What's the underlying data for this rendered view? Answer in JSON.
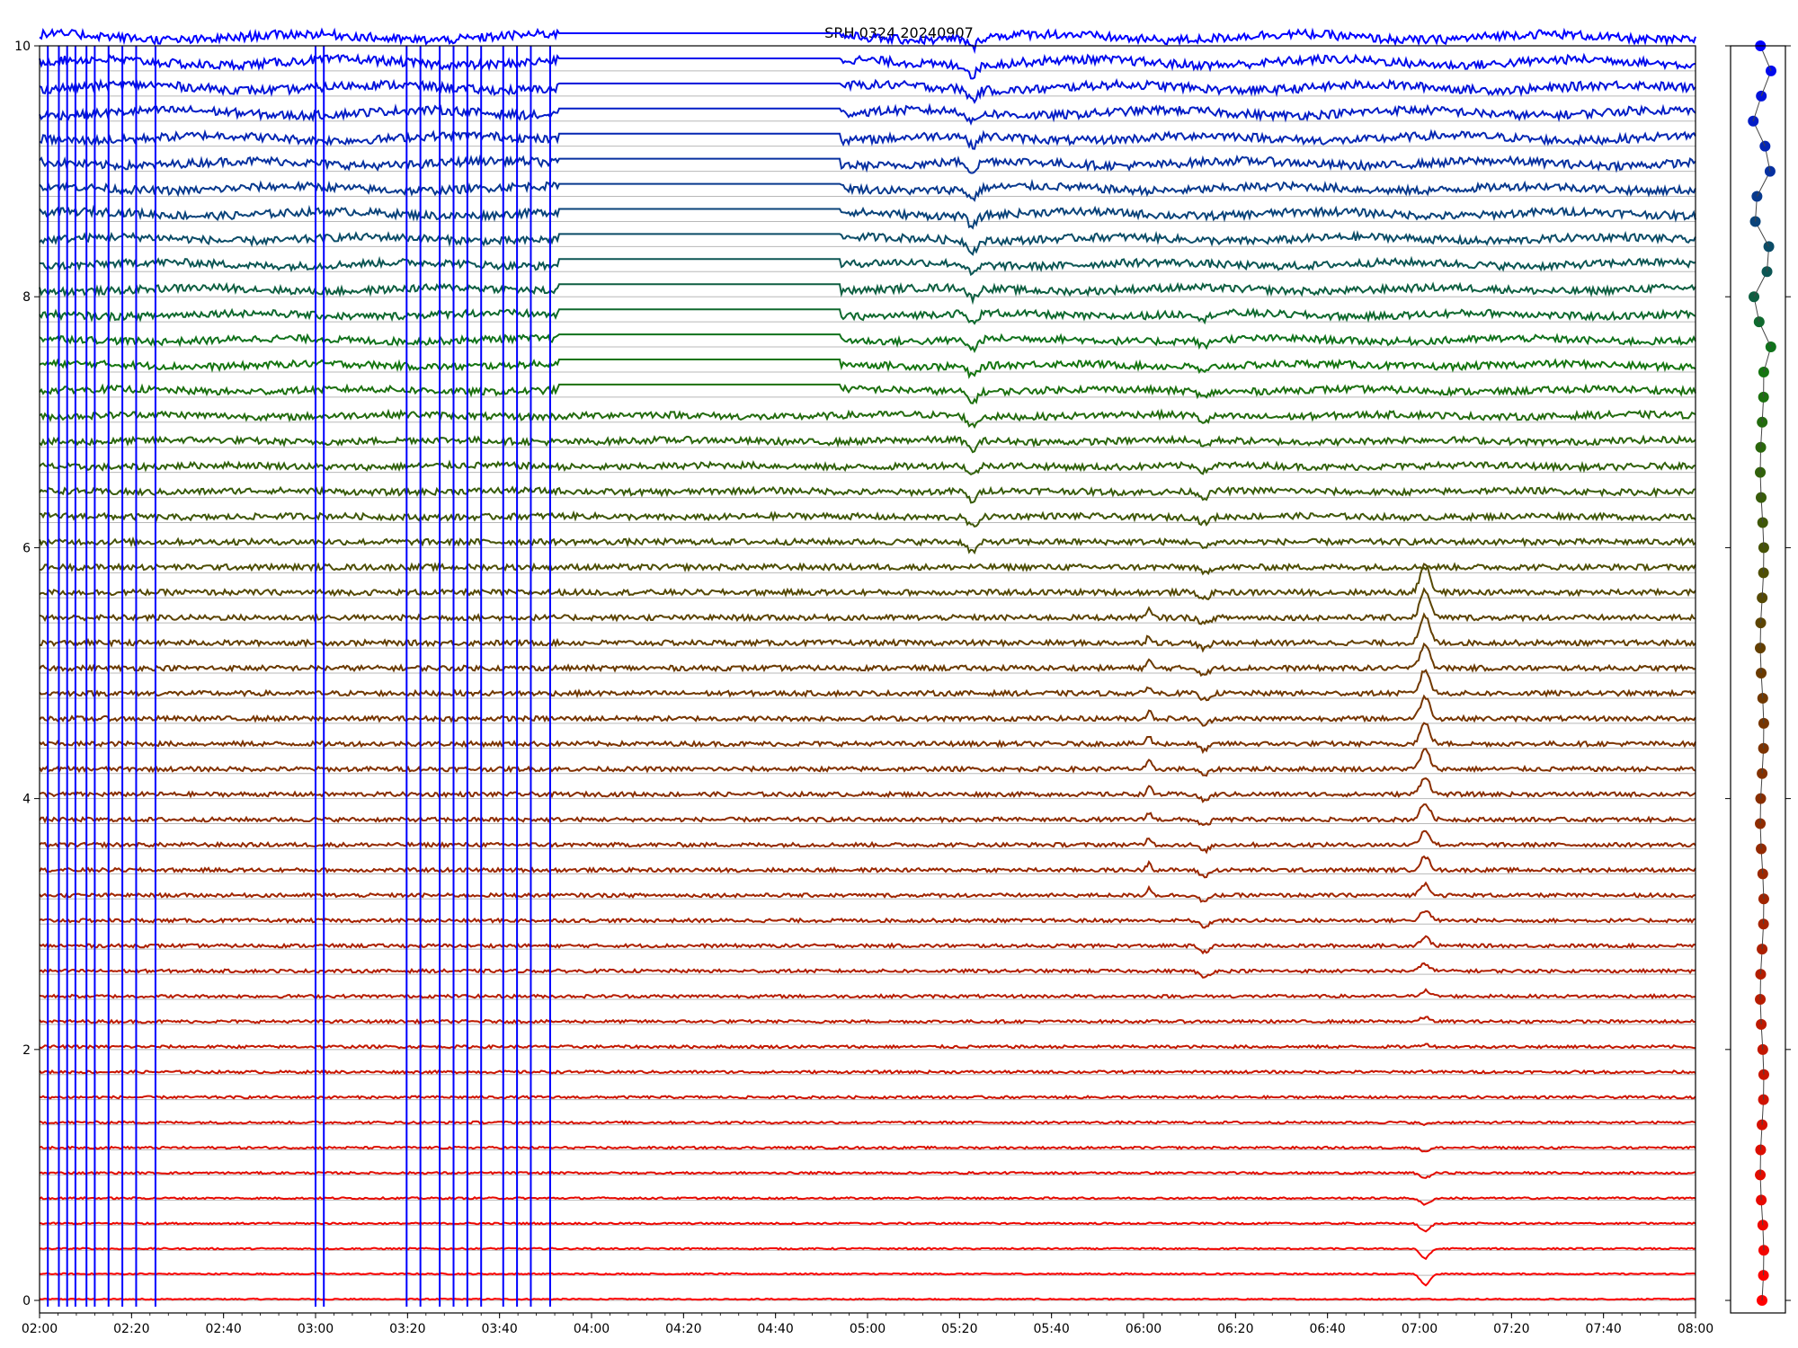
{
  "chart_data": {
    "type": "line",
    "title": "SRH 0324 20240907",
    "xlabel": "",
    "ylabel": "",
    "x_range": [
      "02:00",
      "08:00"
    ],
    "x_ticks": [
      "02:00",
      "02:20",
      "02:40",
      "03:00",
      "03:20",
      "03:40",
      "04:00",
      "04:20",
      "04:40",
      "05:00",
      "05:20",
      "05:40",
      "06:00",
      "06:20",
      "06:40",
      "07:00",
      "07:20",
      "07:40",
      "08:00"
    ],
    "ylim": [
      -0.1,
      10
    ],
    "y_ticks": [
      "0",
      "2",
      "4",
      "6",
      "8",
      "10"
    ],
    "grid": "horizontal baselines per trace",
    "legend": "none",
    "n_traces": 51,
    "trace_spacing": 0.2,
    "color_gradient": [
      "#ff0000",
      "#0000ff"
    ],
    "events": [
      {
        "time": "05:23",
        "note": "dip in upper traces"
      },
      {
        "time": "06:01",
        "note": "spike in mid traces"
      },
      {
        "time": "06:13",
        "note": "dip in mid traces"
      },
      {
        "time": "07:01",
        "note": "dip in lowest traces"
      }
    ],
    "side_panel": {
      "type": "scatter",
      "description_points": 51,
      "colors_match_traces": true
    }
  }
}
